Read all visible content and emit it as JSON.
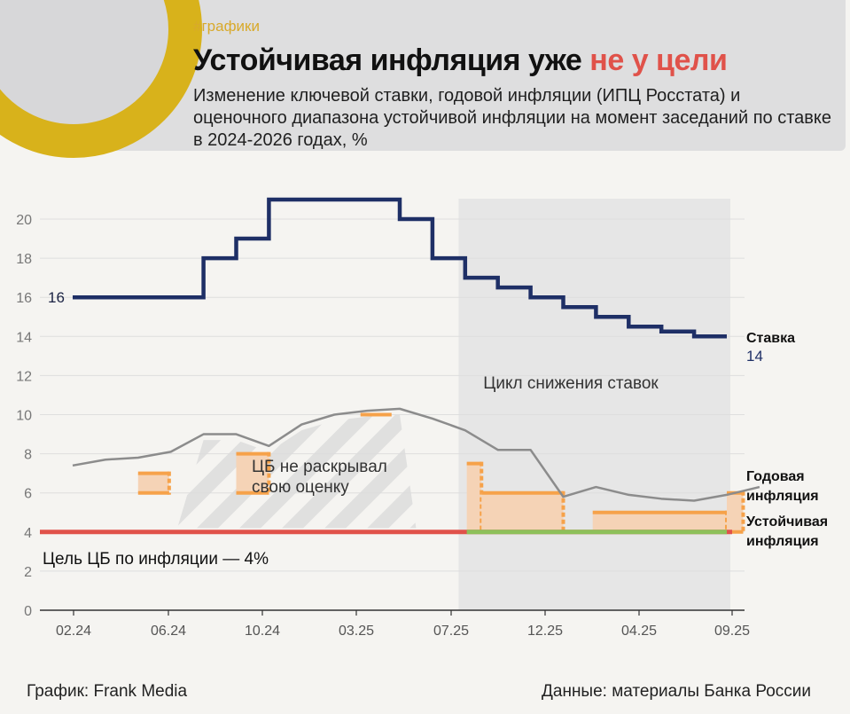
{
  "header": {
    "tag": "#графики",
    "title_main": "Устойчивая инфляция уже ",
    "title_highlight": "не у цели",
    "subtitle": "Изменение ключевой ставки, годовой инфляции (ИПЦ Росстата) и оценочного диапазона устойчивой инфляции на момент заседаний по ставке в 2024-2026 годах, %"
  },
  "colors": {
    "rate": "#1e2f66",
    "inflation": "#8c8c8c",
    "sustainable": "#f6a24a",
    "sustainable_fill": "#f5d3b6",
    "target": "#e0524a",
    "target_reached": "#8dc05a",
    "shade": "#e6e6e6",
    "accent": "#d8b21b",
    "title_highlight": "#e0524a"
  },
  "chart_data": {
    "type": "line",
    "ylim": [
      0,
      21
    ],
    "y_ticks": [
      0,
      2,
      4,
      6,
      8,
      10,
      12,
      14,
      16,
      18,
      20
    ],
    "x_tick_labels": [
      "02.24",
      "06.24",
      "10.24",
      "03.25",
      "07.25",
      "12.25",
      "04.25",
      "09.25"
    ],
    "series": [
      {
        "name": "Ставка",
        "kind": "step",
        "values": [
          16,
          16,
          16,
          16,
          18,
          19,
          21,
          21,
          21,
          21,
          20,
          18,
          17,
          16.5,
          16,
          15.5,
          15,
          14.5,
          14.25,
          14,
          14
        ],
        "start_label": "16",
        "end_label": "14"
      },
      {
        "name": "Годовая инфляция",
        "kind": "line",
        "values": [
          7.4,
          7.7,
          7.8,
          8.1,
          9.0,
          9.0,
          8.4,
          9.5,
          10.0,
          10.2,
          10.3,
          9.8,
          9.2,
          8.2,
          8.2,
          5.8,
          6.3,
          5.9,
          5.7,
          5.6,
          5.9,
          6.3
        ]
      },
      {
        "name": "Устойчивая инфляция",
        "kind": "ranges",
        "ranges": [
          {
            "from": 2.0,
            "to": 2.95,
            "low": 6.0,
            "high": 7.0
          },
          {
            "from": 5.0,
            "to": 6.0,
            "low": 6.0,
            "high": 8.0
          },
          {
            "from": 8.8,
            "to": 9.75,
            "low": 10.0,
            "high": 10.0
          },
          {
            "from": 12.05,
            "to": 12.5,
            "low": 4.0,
            "high": 7.5
          },
          {
            "from": 12.5,
            "to": 15.0,
            "low": 4.0,
            "high": 6.0
          },
          {
            "from": 15.9,
            "to": 20.0,
            "low": 4.0,
            "high": 5.0
          },
          {
            "from": 20.0,
            "to": 20.5,
            "low": 4.0,
            "high": 6.0
          }
        ]
      }
    ],
    "target": {
      "value": 4,
      "label": "Цель ЦБ по инфляции — 4%"
    },
    "target_reached_segment": {
      "from": 12.05,
      "to": 20.0
    },
    "easing_cycle": {
      "from": 11.8,
      "to": 20.0,
      "label": "Цикл снижения ставок"
    },
    "undisclosed": {
      "from": 3.2,
      "to": 10.5,
      "label_line1": "ЦБ не раскрывал",
      "label_line2": "свою оценку"
    },
    "legend": {
      "rate": "Ставка",
      "inflation_line1": "Годовая",
      "inflation_line2": "инфляция",
      "sustainable_line1": "Устойчивая",
      "sustainable_line2": "инфляция"
    }
  },
  "footer": {
    "left": "График: Frank Media",
    "right": "Данные: материалы Банка России"
  }
}
